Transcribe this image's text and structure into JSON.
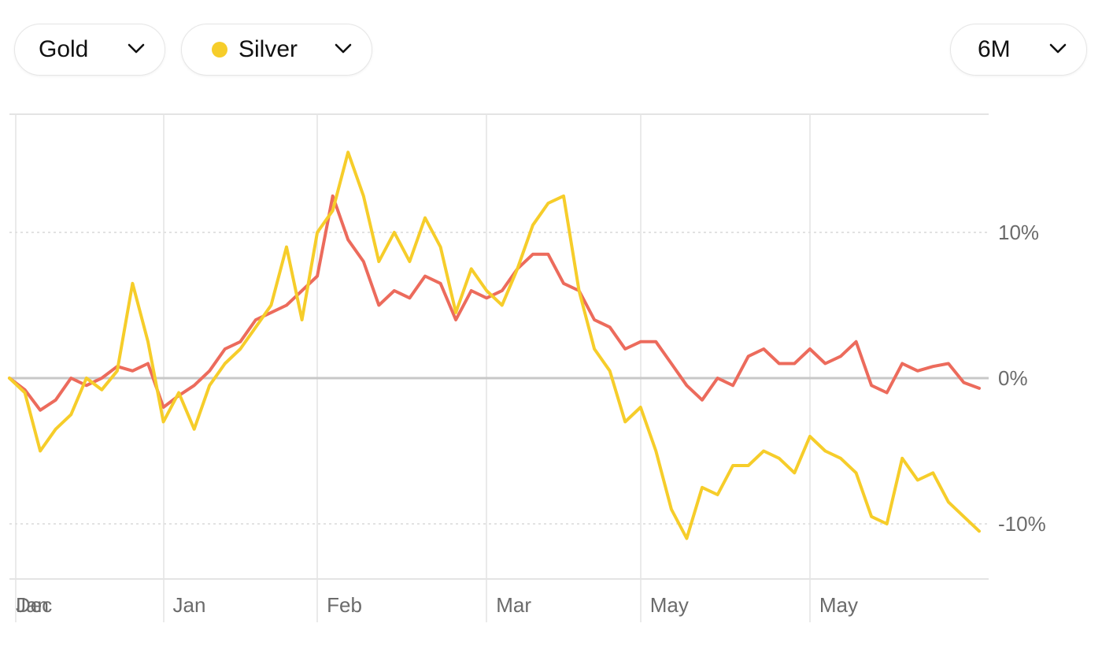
{
  "controls": {
    "asset_a": {
      "label": "Gold"
    },
    "asset_b": {
      "label": "Silver",
      "dot_color": "#f6cd2a"
    },
    "range": {
      "label": "6M"
    }
  },
  "colors": {
    "gold_line": "#ec6b5c",
    "silver_line": "#f6cd2a",
    "grid": "#e4e4e4",
    "baseline": "#c8c8c8"
  },
  "chart_data": {
    "type": "line",
    "title": "",
    "xlabel": "",
    "ylabel": "",
    "ylim": [
      -13,
      18
    ],
    "y_ticks": [
      {
        "value": 10,
        "label": "10%"
      },
      {
        "value": 0,
        "label": "0%"
      },
      {
        "value": -10,
        "label": "-10%"
      }
    ],
    "x_ticks": [
      {
        "index": 0,
        "label": "Dec"
      },
      {
        "index": 0,
        "label": "Jan"
      },
      {
        "index": 10,
        "label": "Jan"
      },
      {
        "index": 20,
        "label": "Feb"
      },
      {
        "index": 31,
        "label": "Mar"
      },
      {
        "index": 41,
        "label": "May"
      },
      {
        "index": 52,
        "label": "May"
      }
    ],
    "x": [
      0,
      1,
      2,
      3,
      4,
      5,
      6,
      7,
      8,
      9,
      10,
      11,
      12,
      13,
      14,
      15,
      16,
      17,
      18,
      19,
      20,
      21,
      22,
      23,
      24,
      25,
      26,
      27,
      28,
      29,
      30,
      31,
      32,
      33,
      34,
      35,
      36,
      37,
      38,
      39,
      40,
      41,
      42,
      43,
      44,
      45,
      46,
      47,
      48,
      49,
      50,
      51,
      52,
      53,
      54,
      55,
      56,
      57,
      58,
      59,
      60,
      61,
      62,
      63
    ],
    "series": [
      {
        "name": "Gold",
        "color": "#ec6b5c",
        "values": [
          0.0,
          -0.8,
          -2.2,
          -1.5,
          0.0,
          -0.5,
          0.0,
          0.8,
          0.5,
          1.0,
          -2.0,
          -1.2,
          -0.5,
          0.5,
          2.0,
          2.5,
          4.0,
          4.5,
          5.0,
          6.0,
          7.0,
          12.5,
          9.5,
          8.0,
          5.0,
          6.0,
          5.5,
          7.0,
          6.5,
          4.0,
          6.0,
          5.5,
          6.0,
          7.5,
          8.5,
          8.5,
          6.5,
          6.0,
          4.0,
          3.5,
          2.0,
          2.5,
          2.5,
          1.0,
          -0.5,
          -1.5,
          0.0,
          -0.5,
          1.5,
          2.0,
          1.0,
          1.0,
          2.0,
          1.0,
          1.5,
          2.5,
          -0.5,
          -1.0,
          1.0,
          0.5,
          0.8,
          1.0,
          -0.3,
          -0.7
        ]
      },
      {
        "name": "Silver",
        "color": "#f6cd2a",
        "values": [
          0.0,
          -1.0,
          -5.0,
          -3.5,
          -2.5,
          0.0,
          -0.8,
          0.5,
          6.5,
          2.5,
          -3.0,
          -1.0,
          -3.5,
          -0.5,
          1.0,
          2.0,
          3.5,
          5.0,
          9.0,
          4.0,
          10.0,
          11.5,
          15.5,
          12.5,
          8.0,
          10.0,
          8.0,
          11.0,
          9.0,
          4.5,
          7.5,
          6.0,
          5.0,
          7.5,
          10.5,
          12.0,
          12.5,
          6.0,
          2.0,
          0.5,
          -3.0,
          -2.0,
          -5.0,
          -9.0,
          -11.0,
          -7.5,
          -8.0,
          -6.0,
          -6.0,
          -5.0,
          -5.5,
          -6.5,
          -4.0,
          -5.0,
          -5.5,
          -6.5,
          -9.5,
          -10.0,
          -5.5,
          -7.0,
          -6.5,
          -8.5,
          -9.5,
          -10.5
        ]
      }
    ],
    "grid": true,
    "legend": "none"
  }
}
